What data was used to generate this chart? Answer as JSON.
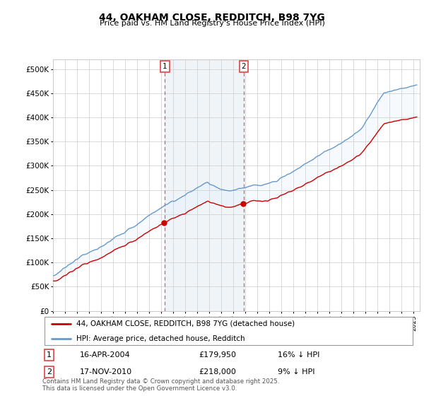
{
  "title_line1": "44, OAKHAM CLOSE, REDDITCH, B98 7YG",
  "title_line2": "Price paid vs. HM Land Registry's House Price Index (HPI)",
  "ylim": [
    0,
    520000
  ],
  "yticks": [
    0,
    50000,
    100000,
    150000,
    200000,
    250000,
    300000,
    350000,
    400000,
    450000,
    500000
  ],
  "ytick_labels": [
    "£0",
    "£50K",
    "£100K",
    "£150K",
    "£200K",
    "£250K",
    "£300K",
    "£350K",
    "£400K",
    "£450K",
    "£500K"
  ],
  "legend_entry1": "44, OAKHAM CLOSE, REDDITCH, B98 7YG (detached house)",
  "legend_entry2": "HPI: Average price, detached house, Redditch",
  "marker1_label": "1",
  "marker2_label": "2",
  "marker1_date": "16-APR-2004",
  "marker1_price": "£179,950",
  "marker1_hpi": "16% ↓ HPI",
  "marker2_date": "17-NOV-2010",
  "marker2_price": "£218,000",
  "marker2_hpi": "9% ↓ HPI",
  "sale1_year": 2004.29,
  "sale1_price": 179950,
  "sale2_year": 2010.87,
  "sale2_price": 218000,
  "footnote": "Contains HM Land Registry data © Crown copyright and database right 2025.\nThis data is licensed under the Open Government Licence v3.0.",
  "line_color_red": "#cc0000",
  "line_color_blue": "#6699cc",
  "fill_color_blue": "#ddeeff",
  "vline_color": "#dd4444",
  "grid_color": "#cccccc",
  "bg_color": "#ffffff",
  "xstart": 1995,
  "xend": 2025.5
}
